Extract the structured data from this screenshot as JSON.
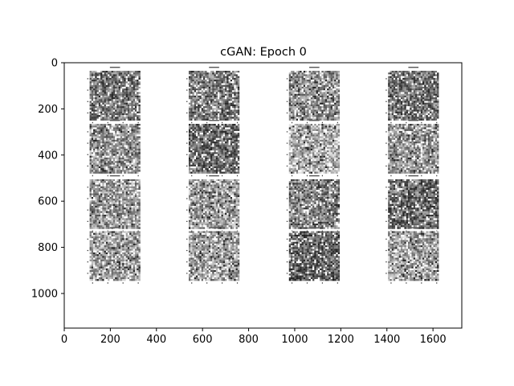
{
  "chart_data": {
    "type": "heatmap",
    "title": "cGAN: Epoch 0",
    "xlabel": "",
    "ylabel": "",
    "xlim": [
      0,
      1725
    ],
    "ylim": [
      1150,
      0
    ],
    "x_ticks": [
      "0",
      "200",
      "400",
      "600",
      "800",
      "1000",
      "1200",
      "1400",
      "1600"
    ],
    "x_tick_values": [
      0,
      200,
      400,
      600,
      800,
      1000,
      1200,
      1400,
      1600
    ],
    "y_ticks": [
      "0",
      "200",
      "400",
      "600",
      "800",
      "1000"
    ],
    "y_tick_values": [
      0,
      200,
      400,
      600,
      800,
      1000
    ],
    "grid": false,
    "legend": "none",
    "colormap": "gray",
    "tiles": {
      "rows": 4,
      "cols": 4,
      "cells_per_side": 28,
      "x_ranges": [
        [
          110,
          330
        ],
        [
          540,
          760
        ],
        [
          975,
          1195
        ],
        [
          1405,
          1625
        ]
      ],
      "y_ranges": [
        [
          35,
          250
        ],
        [
          265,
          480
        ],
        [
          505,
          720
        ],
        [
          730,
          945
        ]
      ],
      "mean_brightness": [
        [
          0.45,
          0.47,
          0.55,
          0.44
        ],
        [
          0.56,
          0.42,
          0.66,
          0.56
        ],
        [
          0.58,
          0.6,
          0.5,
          0.42
        ],
        [
          0.62,
          0.6,
          0.38,
          0.62
        ]
      ]
    }
  }
}
